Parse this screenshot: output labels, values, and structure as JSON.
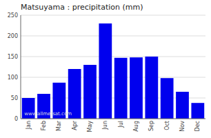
{
  "chart_data": {
    "type": "bar",
    "title": "Matsuyama : precipitation (mm)",
    "categories": [
      "Jan",
      "Feb",
      "Mar",
      "Apr",
      "May",
      "Jun",
      "Jul",
      "Aug",
      "Sep",
      "Oct",
      "Nov",
      "Dec"
    ],
    "values": [
      50,
      60,
      87,
      120,
      130,
      230,
      147,
      148,
      150,
      98,
      65,
      38
    ],
    "color": "#0000ee",
    "ylim": [
      0,
      250
    ],
    "yticks": [
      0,
      50,
      100,
      150,
      200,
      250
    ],
    "grid": true,
    "annotation": "www.allmetsat.com"
  }
}
